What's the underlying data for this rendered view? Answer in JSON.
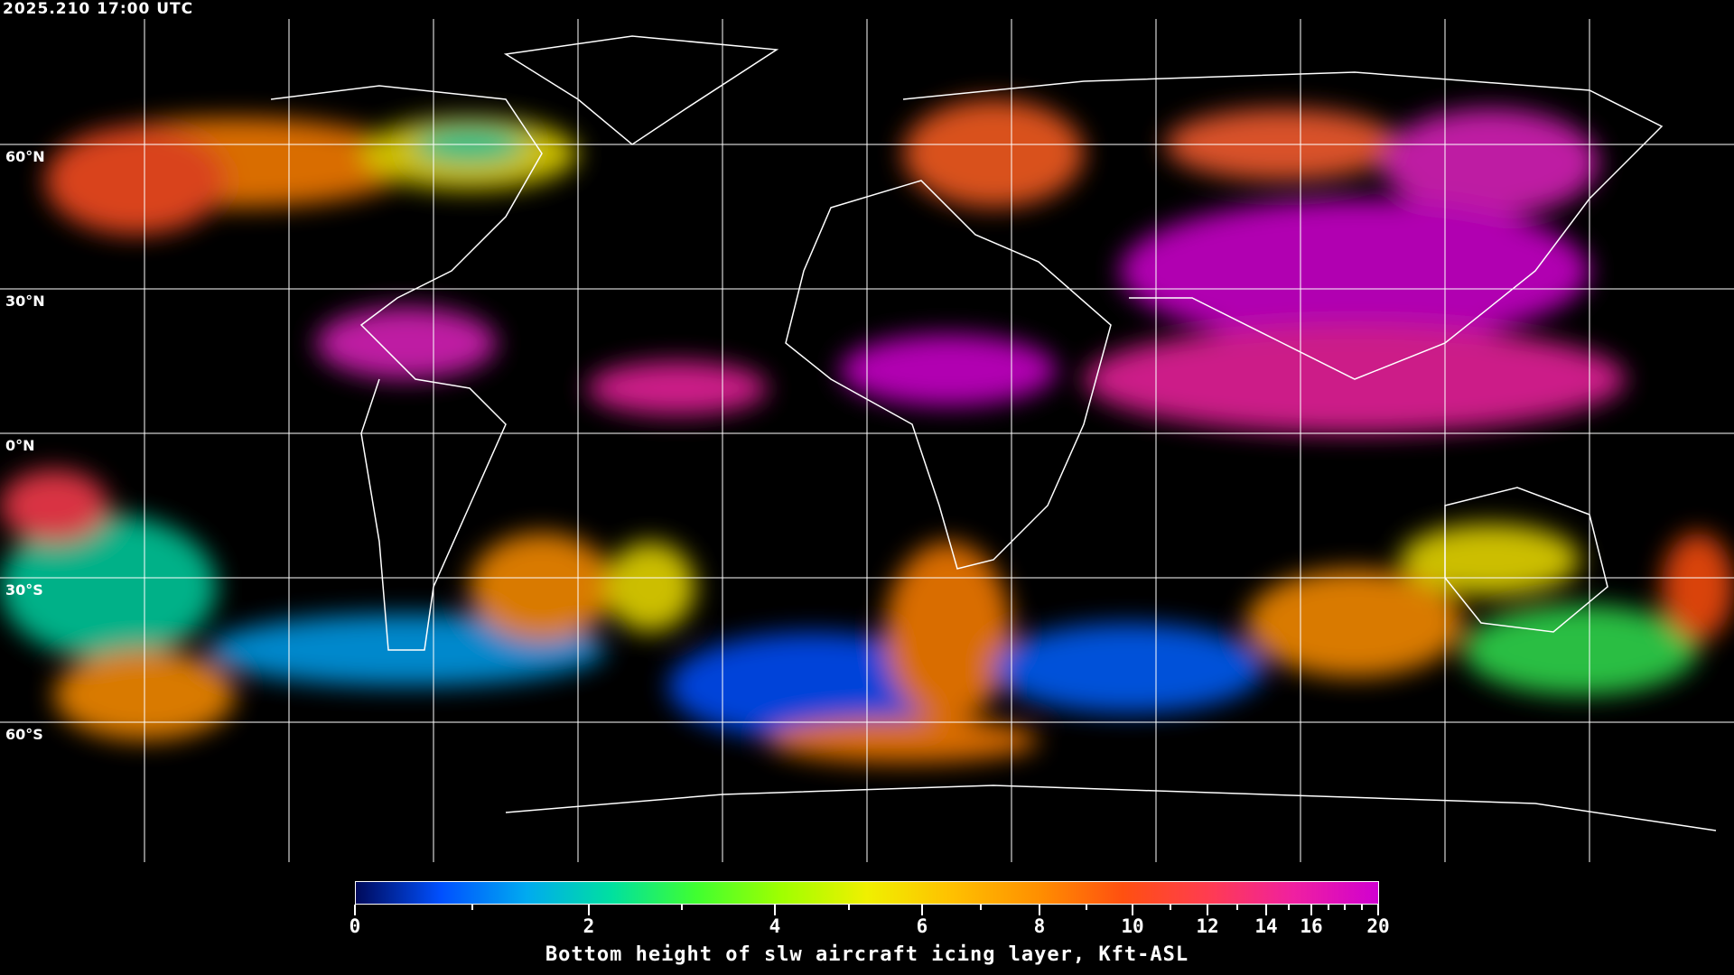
{
  "header": {
    "timestamp": "2025.210 17:00 UTC"
  },
  "map": {
    "projection": "equirectangular",
    "gridline_color": "#ffffff",
    "coastline_color": "#ffffff",
    "background": "#000000",
    "lat_labels": [
      "60°N",
      "30°N",
      "0°N",
      "30°S",
      "60°S"
    ]
  },
  "colorbar": {
    "title": "Bottom height of slw aircraft icing layer, Kft-ASL",
    "range": [
      0,
      20
    ],
    "major_ticks": [
      "0",
      "2",
      "4",
      "6",
      "8",
      "10",
      "12",
      "14",
      "16",
      "20"
    ],
    "minor_ticks": [
      1,
      3,
      5,
      7,
      9,
      11,
      13,
      15,
      17,
      18,
      19
    ],
    "colors": [
      "#000a5a",
      "#0050ff",
      "#00aaf0",
      "#00e0a0",
      "#40ff30",
      "#a0ff00",
      "#f0f000",
      "#ffc000",
      "#ff9000",
      "#ff5010",
      "#ff3c50",
      "#f020a0",
      "#d000d0"
    ]
  }
}
